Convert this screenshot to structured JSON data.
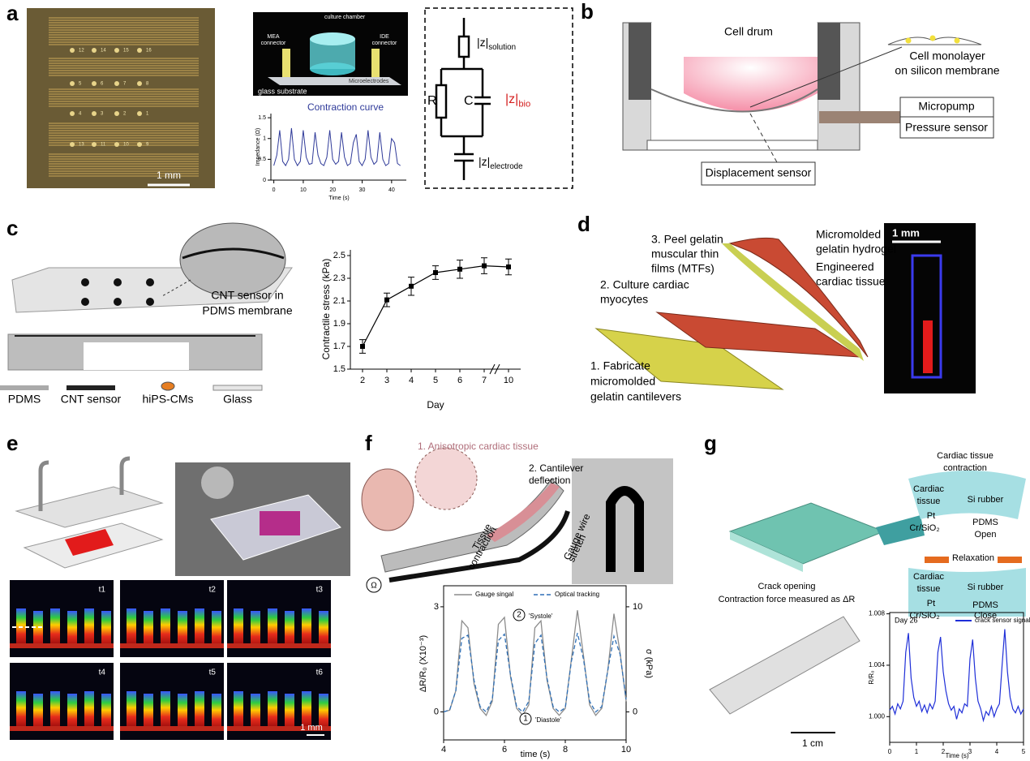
{
  "panel_a": {
    "letter": "a",
    "electrodes": [
      [
        "12",
        "14",
        "15",
        "16"
      ],
      [
        "5",
        "6",
        "7",
        "8"
      ],
      [
        "4",
        "3",
        "2",
        "1"
      ],
      [
        "13",
        "11",
        "10",
        "9"
      ]
    ],
    "scale_bar": "1 mm",
    "device": {
      "culture_chamber": "culture chamber",
      "mea_connector": [
        "MEA",
        "connector"
      ],
      "ide_connector": [
        "IDE",
        "connector"
      ],
      "microelectrodes": "Microelectrodes",
      "substrate": "glass substrate"
    },
    "circuit": {
      "z_solution": {
        "main": "|z|",
        "sub": "solution"
      },
      "r": "R",
      "c": "C",
      "z_bio": {
        "main": "|z|",
        "sub": "bio"
      },
      "z_electrode": {
        "main": "|z|",
        "sub": "electrode"
      }
    },
    "chart": {
      "type": "line",
      "title": "Contraction curve",
      "xlabel": "Time (s)",
      "ylabel": "Impedance (Ω)",
      "color": "#2f3a99",
      "x": [
        0,
        1,
        2,
        3,
        4,
        5,
        6,
        7,
        8,
        9,
        10,
        11,
        12,
        13,
        14,
        15,
        16,
        17,
        18,
        19,
        20,
        21,
        22,
        23,
        24,
        25,
        26,
        27,
        28,
        29,
        30,
        31,
        32,
        33,
        34,
        35,
        36,
        37,
        38,
        39,
        40,
        41,
        42,
        43
      ],
      "values": [
        0.35,
        0.6,
        1.2,
        0.45,
        0.35,
        0.5,
        1.25,
        0.5,
        0.35,
        0.45,
        1.2,
        0.55,
        0.38,
        0.4,
        1.15,
        0.6,
        0.4,
        0.35,
        0.55,
        1.2,
        0.5,
        0.38,
        0.45,
        1.15,
        0.55,
        0.35,
        0.4,
        0.9,
        1.1,
        0.45,
        0.35,
        0.5,
        1.2,
        0.55,
        0.38,
        0.45,
        1.15,
        0.5,
        0.35,
        0.4,
        1.0,
        0.9,
        0.4,
        0.35
      ],
      "xlim": [
        -1,
        45
      ],
      "ylim": [
        0,
        1.6
      ],
      "xticks": [
        0,
        10,
        20,
        30,
        40
      ],
      "yticks": [
        0,
        0.5,
        1,
        1.5
      ]
    }
  },
  "panel_b": {
    "letter": "b",
    "cell_drum": "Cell drum",
    "monolayer": [
      "Cell monolayer",
      "on silicon membrane"
    ],
    "micropump": "Micropump",
    "pressure_sensor": "Pressure sensor",
    "displacement_sensor": "Displacement sensor"
  },
  "panel_c": {
    "letter": "c",
    "sensor_label": [
      "CNT sensor in",
      "PDMS membrane"
    ],
    "legend": [
      "PDMS",
      "CNT sensor",
      "hiPS-CMs",
      "Glass"
    ],
    "chart": {
      "type": "errorbar",
      "xlabel": "Day",
      "ylabel": "Contractile stress (kPa)",
      "color": "#000000",
      "categories": [
        "2",
        "3",
        "4",
        "5",
        "6",
        "7",
        "10"
      ],
      "values": [
        1.7,
        2.11,
        2.23,
        2.35,
        2.38,
        2.41,
        2.4
      ],
      "errors": [
        0.06,
        0.06,
        0.08,
        0.06,
        0.08,
        0.07,
        0.07
      ],
      "ylim": [
        1.5,
        2.55
      ],
      "yticks": [
        1.5,
        1.7,
        1.9,
        2.1,
        2.3,
        2.5
      ]
    }
  },
  "panel_d": {
    "letter": "d",
    "peel": [
      "3. Peel gelatin",
      "muscular thin",
      "films (MTFs)"
    ],
    "hydrogel": [
      "Micromolded",
      "gelatin hydrogel"
    ],
    "tissue": [
      "Engineered",
      "cardiac tissue"
    ],
    "culture": [
      "2. Culture cardiac",
      "myocytes"
    ],
    "fabricate": [
      "1. Fabricate",
      "micromolded",
      "gelatin cantilevers"
    ],
    "scale_bar": "1 mm"
  },
  "panel_e": {
    "letter": "e",
    "frames": [
      "t1",
      "t2",
      "t3",
      "t4",
      "t5",
      "t6"
    ],
    "scale_bar": "1 mm"
  },
  "panel_f": {
    "letter": "f",
    "tissue": "1. Anisotropic cardiac tissue",
    "cantilever": [
      "2. Cantilever",
      "deflection"
    ],
    "contraction": [
      "Tissue",
      "contraction"
    ],
    "stretch": [
      "Gauge wire",
      "stretch"
    ],
    "ohm": "Ω",
    "chart": {
      "type": "line",
      "xlabel": "time (s)",
      "ylabel": "ΔR/R₀ (X10⁻³)",
      "y2label": "σ (kPa)",
      "annotations": [
        {
          "number": "2",
          "text": "'Systole'"
        },
        {
          "number": "1",
          "text": "'Diastole'"
        }
      ],
      "x": [
        4.0,
        4.2,
        4.4,
        4.6,
        4.8,
        5.0,
        5.2,
        5.4,
        5.6,
        5.8,
        6.0,
        6.2,
        6.4,
        6.6,
        6.8,
        7.0,
        7.2,
        7.4,
        7.6,
        7.8,
        8.0,
        8.2,
        8.4,
        8.6,
        8.8,
        9.0,
        9.2,
        9.4,
        9.6,
        9.8,
        10.0
      ],
      "series": [
        {
          "name": "Gauge singal",
          "color": "#8c8c8c",
          "values": [
            0,
            0.05,
            0.6,
            2.6,
            2.4,
            0.8,
            0.1,
            -0.1,
            0.3,
            2.5,
            2.7,
            1.0,
            0.1,
            -0.1,
            0.2,
            2.4,
            2.6,
            0.9,
            0.1,
            -0.1,
            0.1,
            1.5,
            2.9,
            1.6,
            0.2,
            -0.1,
            0.1,
            1.2,
            2.8,
            1.7,
            0.3
          ]
        },
        {
          "name": "Optical tracking",
          "color": "#2f6fb5",
          "dashed": true,
          "axis": "y2",
          "values": [
            0,
            0.2,
            2.0,
            7.0,
            7.3,
            3.0,
            0.5,
            0,
            1.2,
            6.8,
            7.4,
            3.5,
            0.5,
            0,
            1.0,
            6.5,
            7.3,
            3.2,
            0.5,
            0,
            0.4,
            4.8,
            7.5,
            5.0,
            1.0,
            0,
            0.5,
            4.0,
            7.2,
            5.5,
            1.2
          ]
        }
      ],
      "xlim": [
        4,
        10
      ],
      "ylim": [
        -0.8,
        3.6
      ],
      "y2lim": [
        -2.667,
        12
      ],
      "xticks": [
        4,
        6,
        8,
        10
      ],
      "yticks": [
        0,
        3
      ],
      "y2ticks": [
        0,
        10
      ]
    }
  },
  "panel_g": {
    "letter": "g",
    "top_title": [
      "Cardiac tissue",
      "contraction"
    ],
    "open": {
      "tissue": [
        "Cardiac",
        "tissue"
      ],
      "pt": "Pt",
      "cr": "Cr/SiO₂",
      "rubber": "Si rubber",
      "pdms": "PDMS",
      "state": "Open"
    },
    "relaxation": "Relaxation",
    "close": {
      "tissue": [
        "Cardiac",
        "tissue"
      ],
      "pt": "Pt",
      "cr": "Cr/SiO₂",
      "rubber": "Si rubber",
      "pdms": "PDMS",
      "state": "Close"
    },
    "caption": [
      "Crack opening",
      "Contraction force measured as ΔR"
    ],
    "scale_bar": "1 cm",
    "chart": {
      "type": "line",
      "annotation": "Day 26",
      "xlabel": "Time (s)",
      "ylabel": "R/R₀",
      "x": [
        0,
        0.1,
        0.2,
        0.3,
        0.4,
        0.5,
        0.6,
        0.7,
        0.8,
        0.9,
        1.0,
        1.1,
        1.2,
        1.3,
        1.4,
        1.5,
        1.6,
        1.7,
        1.8,
        1.9,
        2.0,
        2.1,
        2.2,
        2.3,
        2.4,
        2.5,
        2.6,
        2.7,
        2.8,
        2.9,
        3.0,
        3.1,
        3.2,
        3.3,
        3.4,
        3.5,
        3.6,
        3.7,
        3.8,
        3.9,
        4.0,
        4.1,
        4.2,
        4.3,
        4.4,
        4.5,
        4.6,
        4.7,
        4.8,
        4.9,
        5.0
      ],
      "series": [
        {
          "name": "crack sensor signal",
          "color": "#1f2fd8",
          "values": [
            1.0005,
            1.0008,
            1.0002,
            1.001,
            1.0006,
            1.0012,
            1.005,
            1.0065,
            1.003,
            1.0015,
            1.0008,
            1.0012,
            1.0004,
            1.0009,
            1.0003,
            1.001,
            1.0006,
            1.0012,
            1.005,
            1.0062,
            1.0035,
            1.002,
            1.001,
            1.0005,
            1.0008,
            0.9998,
            1.0006,
            1.0003,
            1.001,
            1.0008,
            1.0045,
            1.006,
            1.003,
            1.0012,
            1.0006,
            0.9997,
            1.0004,
            1.0001,
            1.0008,
            1.0,
            1.0006,
            1.001,
            1.004,
            1.0068,
            1.0035,
            1.0015,
            1.0006,
            1.0003,
            1.0008,
            1.0002,
            1.0006
          ]
        }
      ],
      "xlim": [
        0,
        5
      ],
      "ylim": [
        0.998,
        1.0081
      ],
      "xticks": [
        0,
        1,
        2,
        3,
        4,
        5
      ],
      "yticks": [
        {
          "value": 1.0,
          "label": "1.000"
        },
        {
          "value": 1.004,
          "label": "1.004"
        },
        {
          "value": 1.008,
          "label": "1.008"
        }
      ]
    }
  }
}
